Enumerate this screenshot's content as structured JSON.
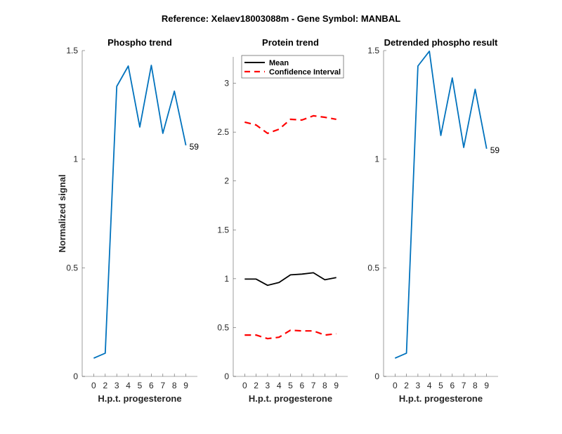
{
  "figure_title": "Reference:  Xelaev18003088m - Gene Symbol:  MANBAL",
  "chart_data": [
    {
      "id": "phospho",
      "type": "line",
      "title": "Phospho trend",
      "xlabel": "H.p.t. progesterone",
      "ylabel": "Normalized signal",
      "categories": [
        "0",
        "2",
        "3",
        "4",
        "5",
        "6",
        "7",
        "8",
        "9"
      ],
      "ylim": [
        0,
        1.5
      ],
      "yticks": [
        0,
        0.5,
        1,
        1.5
      ],
      "ytick_labels": [
        "0",
        "0.5",
        "1",
        "1.5"
      ],
      "series": [
        {
          "name": "Phospho",
          "color": "#0072BD",
          "style": "solid",
          "values": [
            0.084,
            0.107,
            1.335,
            1.429,
            1.148,
            1.432,
            1.119,
            1.313,
            1.064
          ]
        }
      ],
      "annotation": "59"
    },
    {
      "id": "protein",
      "type": "line",
      "title": "Protein trend",
      "xlabel": "H.p.t. progesterone",
      "ylabel": "",
      "categories": [
        "0",
        "2",
        "3",
        "4",
        "5",
        "6",
        "7",
        "8",
        "9"
      ],
      "ylim": [
        0,
        3.27
      ],
      "yticks": [
        0,
        0.5,
        1,
        1.5,
        2,
        2.5,
        3
      ],
      "ytick_labels": [
        "0",
        "0.5",
        "1",
        "1.5",
        "2",
        "2.5",
        "3"
      ],
      "legend_position": "top-left",
      "series": [
        {
          "name": "Mean",
          "color": "#000000",
          "style": "solid",
          "values": [
            0.996,
            0.996,
            0.932,
            0.961,
            1.039,
            1.047,
            1.061,
            0.989,
            1.011
          ]
        },
        {
          "name": "Confidence Interval",
          "color": "#FF0000",
          "style": "dashed",
          "values": [
            2.602,
            2.573,
            2.487,
            2.53,
            2.631,
            2.624,
            2.667,
            2.652,
            2.631
          ]
        },
        {
          "name": "Confidence Interval (lower)",
          "color": "#FF0000",
          "style": "dashed",
          "in_legend": false,
          "values": [
            0.423,
            0.423,
            0.387,
            0.401,
            0.473,
            0.466,
            0.466,
            0.423,
            0.437
          ]
        }
      ],
      "legend": [
        "Mean",
        "Confidence Interval"
      ]
    },
    {
      "id": "detrended",
      "type": "line",
      "title": "Detrended phospho result",
      "xlabel": "H.p.t. progesterone",
      "ylabel": "",
      "categories": [
        "0",
        "2",
        "3",
        "4",
        "5",
        "6",
        "7",
        "8",
        "9"
      ],
      "ylim": [
        0,
        1.5
      ],
      "yticks": [
        0,
        0.5,
        1,
        1.5
      ],
      "ytick_labels": [
        "0",
        "0.5",
        "1",
        "1.5"
      ],
      "series": [
        {
          "name": "Detrended",
          "color": "#0072BD",
          "style": "solid",
          "values": [
            0.084,
            0.107,
            1.429,
            1.497,
            1.109,
            1.374,
            1.054,
            1.322,
            1.048
          ]
        }
      ],
      "annotation": "59"
    }
  ]
}
